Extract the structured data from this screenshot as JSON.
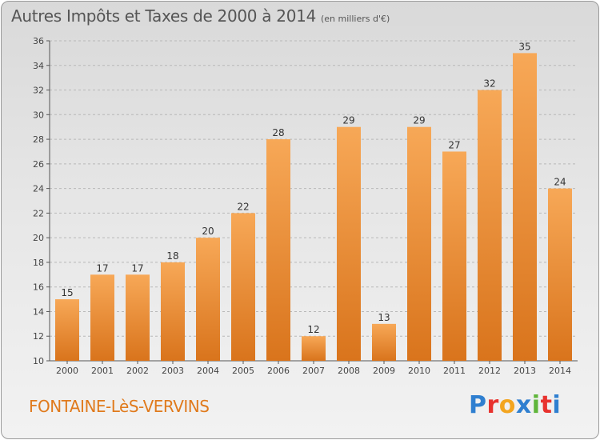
{
  "title": {
    "main": "Autres Impôts et Taxes de 2000 à 2014",
    "unit": "(en milliers d'€)"
  },
  "commune": "FONTAINE-LèS-VERVINS",
  "logo": {
    "letters": [
      "P",
      "r",
      "o",
      "x",
      "i",
      "t",
      "i"
    ],
    "colors": [
      "#2f7fd0",
      "#e8322e",
      "#f3a51f",
      "#2f7fd0",
      "#5fb53a",
      "#e8322e",
      "#2f7fd0"
    ]
  },
  "colors": {
    "bar_light": "#f7a857",
    "bar_dark": "#d9741c",
    "commune_text": "#e07a1c",
    "grid": "#b8b8b8"
  },
  "chart_data": {
    "type": "bar",
    "categories": [
      "2000",
      "2001",
      "2002",
      "2003",
      "2004",
      "2005",
      "2006",
      "2007",
      "2008",
      "2009",
      "2010",
      "2011",
      "2012",
      "2013",
      "2014"
    ],
    "values": [
      15,
      17,
      17,
      18,
      20,
      22,
      28,
      12,
      29,
      13,
      29,
      27,
      32,
      35,
      24
    ],
    "ylim": [
      10,
      36
    ],
    "yticks": [
      10,
      12,
      14,
      16,
      18,
      20,
      22,
      24,
      26,
      28,
      30,
      32,
      34,
      36
    ],
    "grid": true,
    "data_labels": true
  }
}
